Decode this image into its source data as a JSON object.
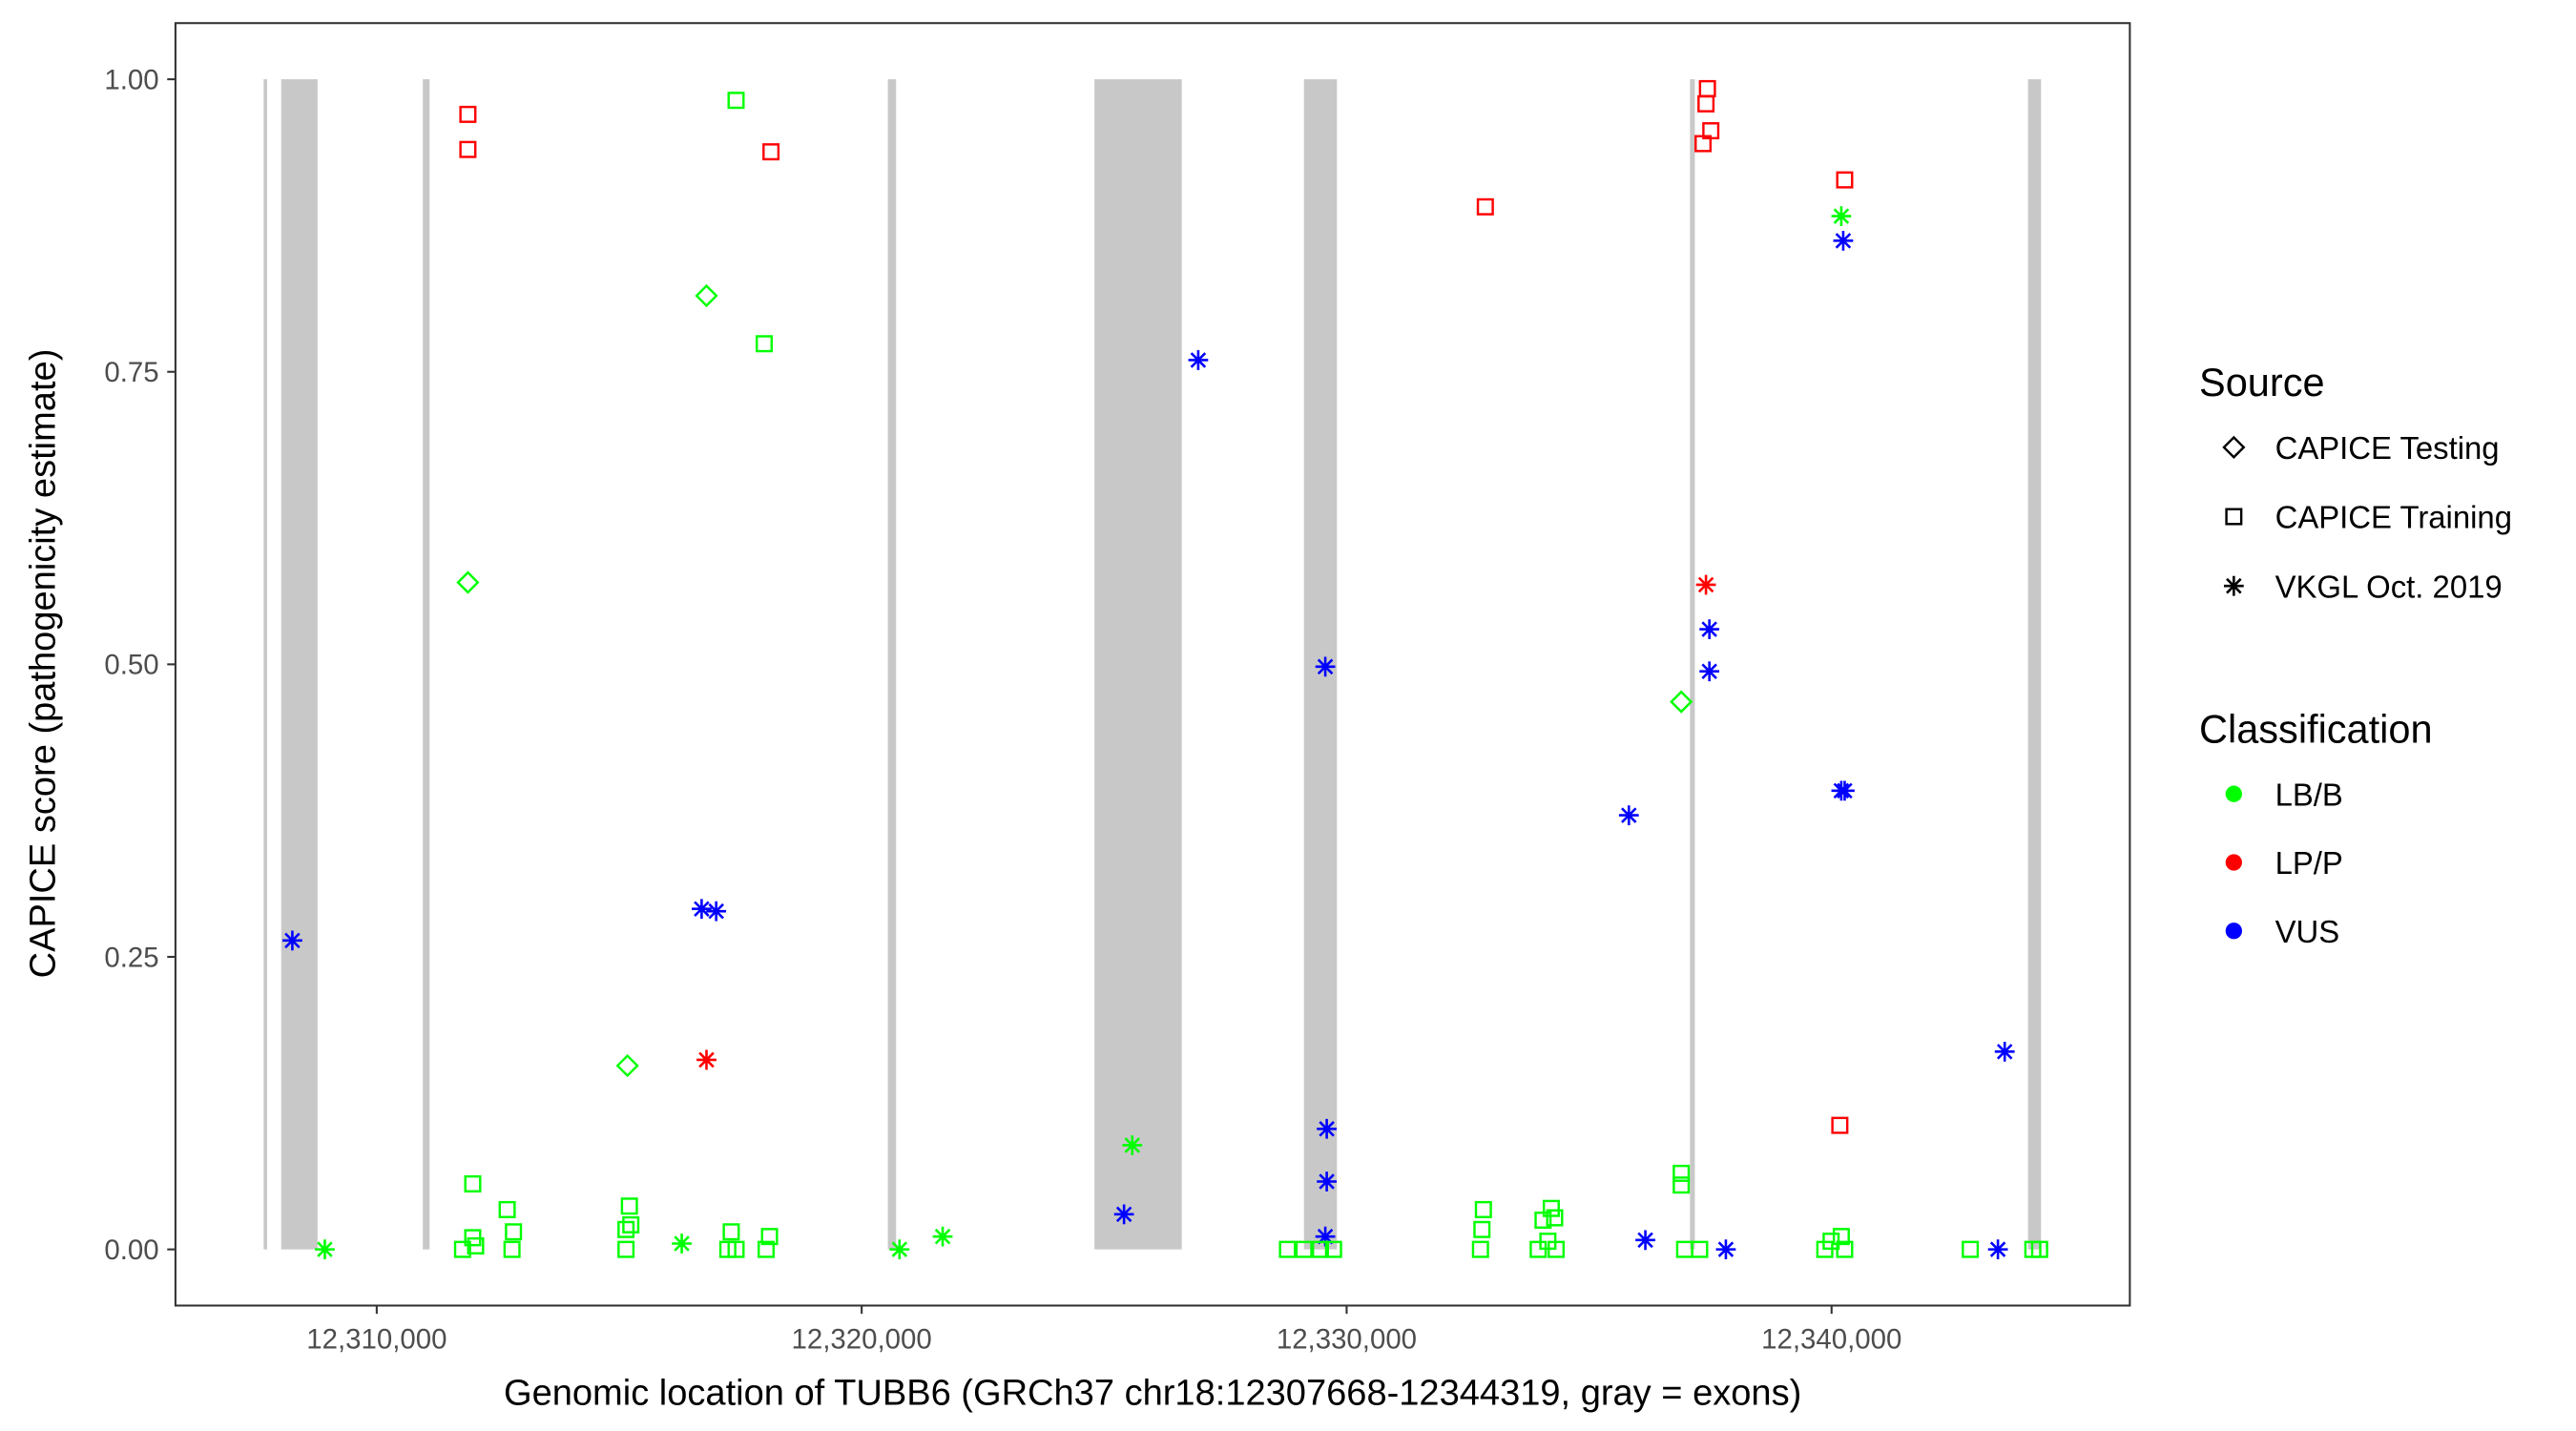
{
  "chart_data": {
    "type": "scatter",
    "xlabel": "Genomic location of TUBB6 (GRCh37 chr18:12307668-12344319, gray = exons)",
    "ylabel": "CAPICE score (pathogenicity estimate)",
    "xlim": [
      12305850,
      12346150
    ],
    "ylim": [
      -0.048,
      1.048
    ],
    "xticks": [
      12310000,
      12320000,
      12330000,
      12340000
    ],
    "xtick_labels": [
      "12,310,000",
      "12,320,000",
      "12,330,000",
      "12,340,000"
    ],
    "yticks": [
      0,
      0.25,
      0.5,
      0.75,
      1
    ],
    "ytick_labels": [
      "0.00",
      "0.25",
      "0.50",
      "0.75",
      "1.00"
    ],
    "grid": false,
    "exons": [
      [
        12307668,
        12307740
      ],
      [
        12308030,
        12308780
      ],
      [
        12310950,
        12311090
      ],
      [
        12320540,
        12320710
      ],
      [
        12324800,
        12326600
      ],
      [
        12329120,
        12329800
      ],
      [
        12337080,
        12337180
      ],
      [
        12344050,
        12344319
      ]
    ],
    "legend": {
      "placement": "right",
      "source_title": "Source",
      "source_items": [
        {
          "label": "CAPICE Testing",
          "shape": "diamond"
        },
        {
          "label": "CAPICE Training",
          "shape": "square"
        },
        {
          "label": "VKGL Oct. 2019",
          "shape": "star"
        }
      ],
      "class_title": "Classification",
      "class_items": [
        {
          "label": "LB/B",
          "color": "#00ff00"
        },
        {
          "label": "LP/P",
          "color": "#ff0000"
        },
        {
          "label": "VUS",
          "color": "#0000ff"
        }
      ]
    },
    "points_px_note": "x in genomic position, y in score",
    "points": [
      [
        12308260,
        0.264,
        "star",
        "VUS"
      ],
      [
        12316700,
        0.291,
        "star",
        "VUS"
      ],
      [
        12317000,
        0.289,
        "star",
        "VUS"
      ],
      [
        12326940,
        0.76,
        "star",
        "VUS"
      ],
      [
        12325410,
        0.03,
        "star",
        "VUS"
      ],
      [
        12329560,
        0.498,
        "star",
        "VUS"
      ],
      [
        12329590,
        0.103,
        "star",
        "VUS"
      ],
      [
        12329590,
        0.058,
        "star",
        "VUS"
      ],
      [
        12329560,
        0.011,
        "star",
        "VUS"
      ],
      [
        12335820,
        0.371,
        "star",
        "VUS"
      ],
      [
        12336160,
        0.008,
        "star",
        "VUS"
      ],
      [
        12337480,
        0.53,
        "star",
        "VUS"
      ],
      [
        12337480,
        0.494,
        "star",
        "VUS"
      ],
      [
        12337820,
        0.0,
        "star",
        "VUS"
      ],
      [
        12340200,
        0.392,
        "star",
        "VUS"
      ],
      [
        12340270,
        0.392,
        "star",
        "VUS"
      ],
      [
        12340240,
        0.862,
        "star",
        "VUS"
      ],
      [
        12343570,
        0.169,
        "star",
        "VUS"
      ],
      [
        12343430,
        0.0,
        "star",
        "VUS"
      ],
      [
        12316800,
        0.162,
        "star",
        "LP/P"
      ],
      [
        12337410,
        0.568,
        "star",
        "LP/P"
      ],
      [
        12308930,
        0.0,
        "star",
        "LB/B"
      ],
      [
        12320780,
        0.0,
        "star",
        "LB/B"
      ],
      [
        12321670,
        0.011,
        "star",
        "LB/B"
      ],
      [
        12325580,
        0.089,
        "star",
        "LB/B"
      ],
      [
        12340200,
        0.883,
        "star",
        "LB/B"
      ],
      [
        12316290,
        0.005,
        "star",
        "LB/B"
      ],
      [
        12316800,
        0.815,
        "diamond",
        "LB/B"
      ],
      [
        12311880,
        0.57,
        "diamond",
        "LB/B"
      ],
      [
        12315170,
        0.157,
        "diamond",
        "LB/B"
      ],
      [
        12336900,
        0.468,
        "diamond",
        "LB/B"
      ],
      [
        12311880,
        0.97,
        "square",
        "LP/P"
      ],
      [
        12311880,
        0.94,
        "square",
        "LP/P"
      ],
      [
        12318130,
        0.938,
        "square",
        "LP/P"
      ],
      [
        12332860,
        0.891,
        "square",
        "LP/P"
      ],
      [
        12337440,
        0.992,
        "square",
        "LP/P"
      ],
      [
        12337410,
        0.979,
        "square",
        "LP/P"
      ],
      [
        12337510,
        0.956,
        "square",
        "LP/P"
      ],
      [
        12337350,
        0.945,
        "square",
        "LP/P"
      ],
      [
        12340270,
        0.914,
        "square",
        "LP/P"
      ],
      [
        12340170,
        0.106,
        "square",
        "LP/P"
      ],
      [
        12317410,
        0.982,
        "square",
        "LB/B"
      ],
      [
        12317990,
        0.774,
        "square",
        "LB/B"
      ],
      [
        12311980,
        0.056,
        "square",
        "LB/B"
      ],
      [
        12312690,
        0.034,
        "square",
        "LB/B"
      ],
      [
        12315210,
        0.037,
        "square",
        "LB/B"
      ],
      [
        12336900,
        0.065,
        "square",
        "LB/B"
      ],
      [
        12336900,
        0.055,
        "square",
        "LB/B"
      ],
      [
        12332820,
        0.034,
        "square",
        "LB/B"
      ],
      [
        12334220,
        0.035,
        "square",
        "LB/B"
      ],
      [
        12334050,
        0.025,
        "square",
        "LB/B"
      ],
      [
        12334290,
        0.027,
        "square",
        "LB/B"
      ],
      [
        12311770,
        0.0,
        "square",
        "LB/B"
      ],
      [
        12311980,
        0.01,
        "square",
        "LB/B"
      ],
      [
        12312040,
        0.003,
        "square",
        "LB/B"
      ],
      [
        12312790,
        0.0,
        "square",
        "LB/B"
      ],
      [
        12312820,
        0.015,
        "square",
        "LB/B"
      ],
      [
        12315140,
        0.0,
        "square",
        "LB/B"
      ],
      [
        12315140,
        0.017,
        "square",
        "LB/B"
      ],
      [
        12315240,
        0.021,
        "square",
        "LB/B"
      ],
      [
        12317310,
        0.015,
        "square",
        "LB/B"
      ],
      [
        12317240,
        0.0,
        "square",
        "LB/B"
      ],
      [
        12317410,
        0.0,
        "square",
        "LB/B"
      ],
      [
        12318100,
        0.011,
        "square",
        "LB/B"
      ],
      [
        12318030,
        0.0,
        "square",
        "LB/B"
      ],
      [
        12328780,
        0.0,
        "square",
        "LB/B"
      ],
      [
        12329120,
        0.0,
        "square",
        "LB/B"
      ],
      [
        12329460,
        0.0,
        "square",
        "LB/B"
      ],
      [
        12329730,
        0.0,
        "square",
        "LB/B"
      ],
      [
        12332760,
        0.0,
        "square",
        "LB/B"
      ],
      [
        12332790,
        0.017,
        "square",
        "LB/B"
      ],
      [
        12333950,
        0.0,
        "square",
        "LB/B"
      ],
      [
        12334150,
        0.007,
        "square",
        "LB/B"
      ],
      [
        12334320,
        0.0,
        "square",
        "LB/B"
      ],
      [
        12336970,
        0.0,
        "square",
        "LB/B"
      ],
      [
        12337280,
        0.0,
        "square",
        "LB/B"
      ],
      [
        12339860,
        0.0,
        "square",
        "LB/B"
      ],
      [
        12339990,
        0.007,
        "square",
        "LB/B"
      ],
      [
        12340200,
        0.011,
        "square",
        "LB/B"
      ],
      [
        12340270,
        0.0,
        "square",
        "LB/B"
      ],
      [
        12342860,
        0.0,
        "square",
        "LB/B"
      ],
      [
        12344150,
        0.0,
        "square",
        "LB/B"
      ],
      [
        12344290,
        0.0,
        "square",
        "LB/B"
      ]
    ]
  }
}
